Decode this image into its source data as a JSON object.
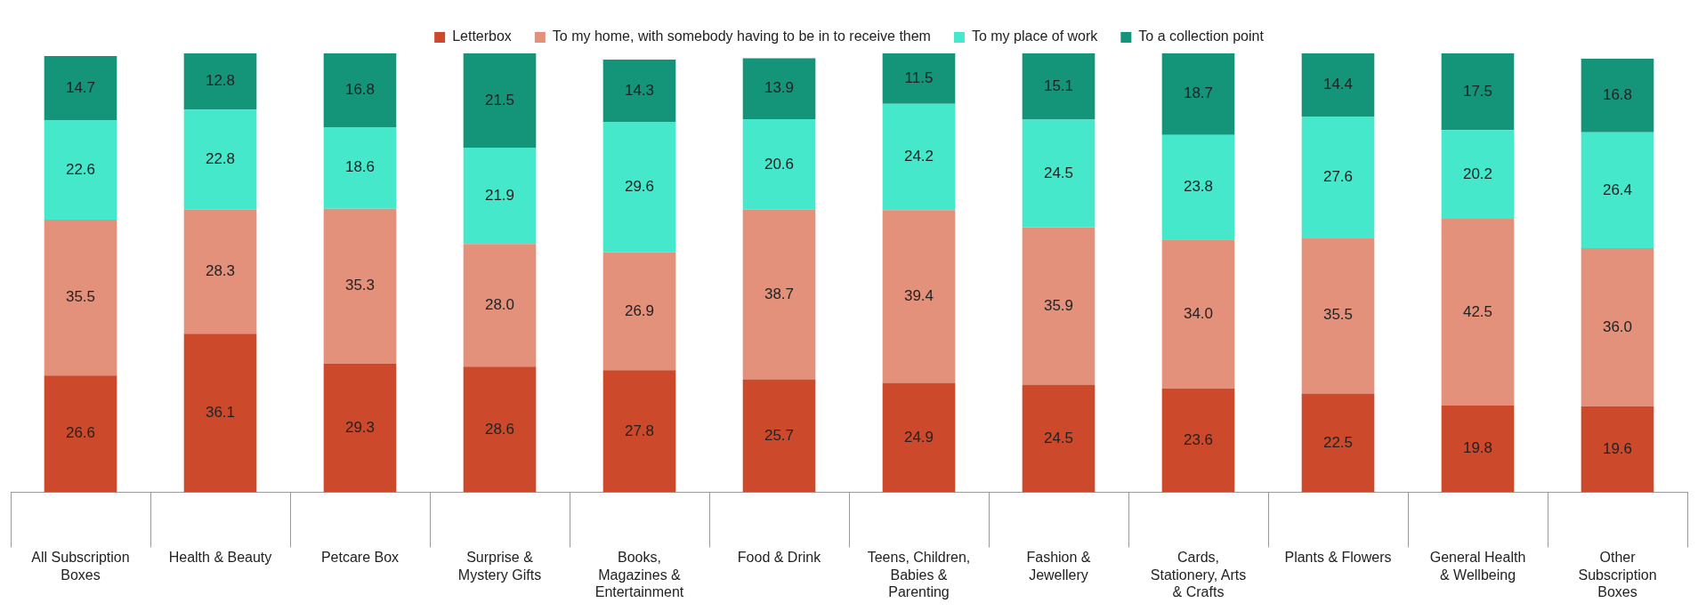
{
  "chart_data": {
    "type": "bar",
    "stacked": true,
    "data_labels": true,
    "legend": "top",
    "tick_labels": "x",
    "ylim": [
      0,
      100
    ],
    "categories": [
      "All Subscription Boxes",
      "Health & Beauty",
      "Petcare Box",
      "Surprise & Mystery Gifts",
      "Books, Magazines & Entertainment",
      "Food & Drink",
      "Teens, Children, Babies & Parenting",
      "Fashion & Jewellery",
      "Cards, Stationery, Arts & Crafts",
      "Plants & Flowers",
      "General Health & Wellbeing",
      "Other Subscription Boxes"
    ],
    "series": [
      {
        "name": "Letterbox",
        "color": "#cc4a2b",
        "values": [
          26.6,
          36.1,
          29.3,
          28.6,
          27.8,
          25.7,
          24.9,
          24.5,
          23.6,
          22.5,
          19.8,
          19.6
        ]
      },
      {
        "name": "To my home, with somebody having to be in to receive them",
        "color": "#e4917b",
        "values": [
          35.5,
          28.3,
          35.3,
          28.0,
          26.9,
          38.7,
          39.4,
          35.9,
          34.0,
          35.5,
          42.5,
          36.0
        ],
        "value_labels": [
          "35.5",
          "28.3",
          "35.3",
          "28.0",
          "26.9",
          "38.7",
          "39.4",
          "35.9",
          "34.0",
          "35.5",
          "42.5",
          "36.0"
        ]
      },
      {
        "name": "To my place of work",
        "color": "#45e8cb",
        "values": [
          22.6,
          22.8,
          18.6,
          21.9,
          29.6,
          20.6,
          24.2,
          24.5,
          23.8,
          27.6,
          20.2,
          26.4
        ]
      },
      {
        "name": "To a collection point",
        "color": "#14957a",
        "values": [
          14.7,
          12.8,
          16.8,
          21.5,
          14.3,
          13.9,
          11.5,
          15.1,
          18.7,
          14.4,
          17.5,
          16.8
        ]
      }
    ]
  }
}
